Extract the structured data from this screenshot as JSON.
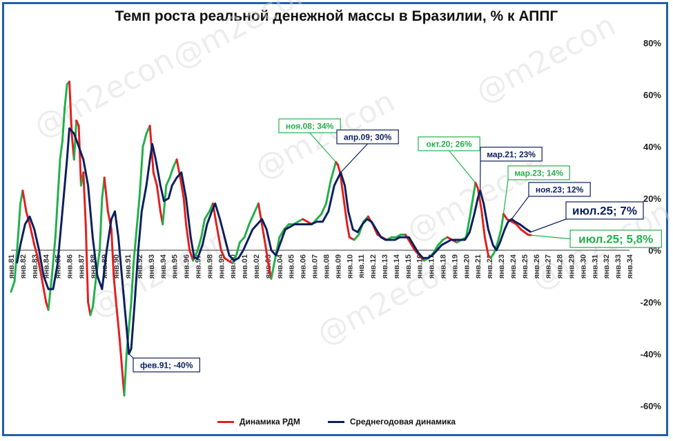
{
  "chart_data": {
    "type": "line",
    "title": "Темп роста реальной денежной массы в Бразилии, % к АППГ",
    "watermark": "@m2econ",
    "y_ticks": [
      "80%",
      "60%",
      "40%",
      "20%",
      "0%",
      "-20%",
      "-40%",
      "-60%"
    ],
    "ylim": [
      -60,
      80
    ],
    "xlim": [
      1981,
      2034
    ],
    "x_ticks": [
      "янв.81",
      "янв.82",
      "янв.83",
      "янв.84",
      "янв.85",
      "янв.86",
      "янв.87",
      "янв.88",
      "янв.89",
      "янв.90",
      "янв.91",
      "янв.92",
      "янв.93",
      "янв.94",
      "янв.95",
      "янв.96",
      "янв.97",
      "янв.98",
      "янв.99",
      "янв.00",
      "янв.01",
      "янв.02",
      "янв.03",
      "янв.04",
      "янв.05",
      "янв.06",
      "янв.07",
      "янв.08",
      "янв.09",
      "янв.10",
      "янв.11",
      "янв.12",
      "янв.13",
      "янв.14",
      "янв.15",
      "янв.16",
      "янв.17",
      "янв.18",
      "янв.19",
      "янв.20",
      "янв.21",
      "янв.22",
      "янв.23",
      "янв.24",
      "янв.25",
      "янв.26",
      "янв.27",
      "янв.28",
      "янв.29",
      "янв.30",
      "янв.31",
      "янв.32",
      "янв.33",
      "янв.34"
    ],
    "series": [
      {
        "name": "Динамика РДМ",
        "color_up": "#22b04a",
        "color_down": "#e02020",
        "points": [
          [
            1981.0,
            -16
          ],
          [
            1981.3,
            -12
          ],
          [
            1981.6,
            5
          ],
          [
            1981.8,
            18
          ],
          [
            1982.0,
            23
          ],
          [
            1982.3,
            15
          ],
          [
            1982.6,
            10
          ],
          [
            1983.0,
            2
          ],
          [
            1983.3,
            -3
          ],
          [
            1983.6,
            -10
          ],
          [
            1984.0,
            -20
          ],
          [
            1984.2,
            -23
          ],
          [
            1984.5,
            -10
          ],
          [
            1984.8,
            5
          ],
          [
            1985.0,
            20
          ],
          [
            1985.2,
            35
          ],
          [
            1985.4,
            42
          ],
          [
            1985.6,
            55
          ],
          [
            1985.8,
            64
          ],
          [
            1986.0,
            65
          ],
          [
            1986.2,
            45
          ],
          [
            1986.4,
            35
          ],
          [
            1986.6,
            50
          ],
          [
            1986.8,
            48
          ],
          [
            1987.0,
            25
          ],
          [
            1987.2,
            30
          ],
          [
            1987.4,
            10
          ],
          [
            1987.6,
            -20
          ],
          [
            1987.8,
            -25
          ],
          [
            1988.0,
            -22
          ],
          [
            1988.3,
            -10
          ],
          [
            1988.6,
            0
          ],
          [
            1988.8,
            20
          ],
          [
            1989.0,
            28
          ],
          [
            1989.3,
            15
          ],
          [
            1989.6,
            8
          ],
          [
            1989.8,
            -10
          ],
          [
            1990.0,
            -20
          ],
          [
            1990.3,
            -34
          ],
          [
            1990.5,
            -45
          ],
          [
            1990.7,
            -56
          ],
          [
            1990.9,
            -40
          ],
          [
            1991.1,
            -30
          ],
          [
            1991.3,
            -20
          ],
          [
            1991.5,
            -5
          ],
          [
            1991.8,
            10
          ],
          [
            1992.0,
            20
          ],
          [
            1992.3,
            40
          ],
          [
            1992.6,
            45
          ],
          [
            1992.9,
            48
          ],
          [
            1993.2,
            30
          ],
          [
            1993.5,
            25
          ],
          [
            1993.8,
            15
          ],
          [
            1994.0,
            10
          ],
          [
            1994.3,
            25
          ],
          [
            1994.6,
            28
          ],
          [
            1994.9,
            32
          ],
          [
            1995.2,
            35
          ],
          [
            1995.5,
            28
          ],
          [
            1995.8,
            20
          ],
          [
            1996.0,
            10
          ],
          [
            1996.3,
            0
          ],
          [
            1996.6,
            -4
          ],
          [
            1997.0,
            0
          ],
          [
            1997.3,
            5
          ],
          [
            1997.6,
            12
          ],
          [
            1998.0,
            15
          ],
          [
            1998.3,
            18
          ],
          [
            1998.6,
            10
          ],
          [
            1999.0,
            0
          ],
          [
            1999.3,
            -3
          ],
          [
            1999.6,
            -4
          ],
          [
            2000.0,
            -5
          ],
          [
            2000.3,
            -2
          ],
          [
            2000.6,
            3
          ],
          [
            2001.0,
            5
          ],
          [
            2001.4,
            10
          ],
          [
            2001.8,
            14
          ],
          [
            2002.2,
            18
          ],
          [
            2002.5,
            10
          ],
          [
            2002.8,
            2
          ],
          [
            2003.0,
            -4
          ],
          [
            2003.3,
            -11
          ],
          [
            2003.6,
            -4
          ],
          [
            2004.0,
            5
          ],
          [
            2004.4,
            8
          ],
          [
            2004.8,
            10
          ],
          [
            2005.2,
            10
          ],
          [
            2005.6,
            11
          ],
          [
            2006.0,
            12
          ],
          [
            2006.4,
            11
          ],
          [
            2006.8,
            10
          ],
          [
            2007.2,
            12
          ],
          [
            2007.6,
            14
          ],
          [
            2008.0,
            18
          ],
          [
            2008.4,
            27
          ],
          [
            2008.84,
            34
          ],
          [
            2009.0,
            33
          ],
          [
            2009.2,
            30
          ],
          [
            2009.5,
            20
          ],
          [
            2009.8,
            10
          ],
          [
            2010.0,
            5
          ],
          [
            2010.4,
            4
          ],
          [
            2010.8,
            6
          ],
          [
            2011.2,
            11
          ],
          [
            2011.6,
            13
          ],
          [
            2012.0,
            10
          ],
          [
            2012.4,
            6
          ],
          [
            2012.8,
            5
          ],
          [
            2013.2,
            4
          ],
          [
            2013.6,
            5
          ],
          [
            2014.0,
            5
          ],
          [
            2014.4,
            6
          ],
          [
            2014.8,
            6
          ],
          [
            2015.2,
            3
          ],
          [
            2015.6,
            0
          ],
          [
            2016.0,
            -2
          ],
          [
            2016.4,
            -4
          ],
          [
            2016.8,
            -3
          ],
          [
            2017.2,
            -1
          ],
          [
            2017.6,
            2
          ],
          [
            2018.0,
            4
          ],
          [
            2018.4,
            5
          ],
          [
            2018.8,
            4
          ],
          [
            2019.2,
            3
          ],
          [
            2019.6,
            4
          ],
          [
            2020.0,
            5
          ],
          [
            2020.4,
            15
          ],
          [
            2020.8,
            26
          ],
          [
            2021.0,
            24
          ],
          [
            2021.3,
            16
          ],
          [
            2021.6,
            5
          ],
          [
            2021.9,
            -2
          ],
          [
            2022.1,
            -3
          ],
          [
            2022.4,
            -1
          ],
          [
            2022.7,
            3
          ],
          [
            2023.0,
            8
          ],
          [
            2023.2,
            14
          ],
          [
            2023.5,
            12
          ],
          [
            2023.9,
            11
          ],
          [
            2024.3,
            10
          ],
          [
            2024.7,
            8
          ],
          [
            2025.0,
            7
          ],
          [
            2025.3,
            6
          ],
          [
            2025.54,
            5.8
          ]
        ]
      },
      {
        "name": "Среднегодовая динамика",
        "color": "#0b1f5c",
        "points": [
          [
            1981.5,
            -5
          ],
          [
            1981.8,
            2
          ],
          [
            1982.2,
            10
          ],
          [
            1982.6,
            13
          ],
          [
            1983.0,
            8
          ],
          [
            1983.4,
            0
          ],
          [
            1983.8,
            -10
          ],
          [
            1984.2,
            -15
          ],
          [
            1984.6,
            -15
          ],
          [
            1985.0,
            -5
          ],
          [
            1985.4,
            15
          ],
          [
            1985.8,
            35
          ],
          [
            1986.0,
            47
          ],
          [
            1986.4,
            45
          ],
          [
            1986.8,
            40
          ],
          [
            1987.2,
            35
          ],
          [
            1987.6,
            25
          ],
          [
            1988.0,
            5
          ],
          [
            1988.4,
            -10
          ],
          [
            1988.8,
            -15
          ],
          [
            1989.2,
            0
          ],
          [
            1989.6,
            12
          ],
          [
            1989.9,
            15
          ],
          [
            1990.2,
            5
          ],
          [
            1990.6,
            -15
          ],
          [
            1990.9,
            -30
          ],
          [
            1991.1,
            -40
          ],
          [
            1991.3,
            -38
          ],
          [
            1991.6,
            -20
          ],
          [
            1991.9,
            0
          ],
          [
            1992.2,
            15
          ],
          [
            1992.6,
            25
          ],
          [
            1992.9,
            35
          ],
          [
            1993.1,
            41
          ],
          [
            1993.4,
            35
          ],
          [
            1993.8,
            25
          ],
          [
            1994.1,
            19
          ],
          [
            1994.5,
            20
          ],
          [
            1994.8,
            25
          ],
          [
            1995.2,
            28
          ],
          [
            1995.6,
            30
          ],
          [
            1996.0,
            20
          ],
          [
            1996.4,
            5
          ],
          [
            1996.7,
            -3
          ],
          [
            1997.0,
            -3
          ],
          [
            1997.4,
            2
          ],
          [
            1997.8,
            10
          ],
          [
            1998.2,
            15
          ],
          [
            1998.5,
            18
          ],
          [
            1998.9,
            12
          ],
          [
            1999.3,
            5
          ],
          [
            1999.7,
            -2
          ],
          [
            2000.1,
            -4
          ],
          [
            2000.5,
            -3
          ],
          [
            2000.9,
            0
          ],
          [
            2001.3,
            4
          ],
          [
            2001.7,
            8
          ],
          [
            2002.1,
            10
          ],
          [
            2002.5,
            12
          ],
          [
            2002.9,
            8
          ],
          [
            2003.3,
            0
          ],
          [
            2003.7,
            -2
          ],
          [
            2004.1,
            3
          ],
          [
            2004.5,
            8
          ],
          [
            2004.9,
            9
          ],
          [
            2005.3,
            10
          ],
          [
            2005.7,
            10
          ],
          [
            2006.2,
            10
          ],
          [
            2006.7,
            10
          ],
          [
            2007.2,
            11
          ],
          [
            2007.7,
            11
          ],
          [
            2008.2,
            15
          ],
          [
            2008.7,
            25
          ],
          [
            2009.25,
            30
          ],
          [
            2009.6,
            25
          ],
          [
            2009.9,
            15
          ],
          [
            2010.3,
            8
          ],
          [
            2010.7,
            7
          ],
          [
            2011.1,
            10
          ],
          [
            2011.5,
            12
          ],
          [
            2011.9,
            11
          ],
          [
            2012.3,
            8
          ],
          [
            2012.7,
            5
          ],
          [
            2013.1,
            4
          ],
          [
            2013.5,
            4
          ],
          [
            2013.9,
            4
          ],
          [
            2014.3,
            5
          ],
          [
            2014.7,
            5
          ],
          [
            2015.1,
            5
          ],
          [
            2015.5,
            2
          ],
          [
            2015.9,
            -1
          ],
          [
            2016.3,
            -3
          ],
          [
            2016.7,
            -3
          ],
          [
            2017.1,
            -2
          ],
          [
            2017.5,
            0
          ],
          [
            2017.9,
            2
          ],
          [
            2018.3,
            3
          ],
          [
            2018.7,
            4
          ],
          [
            2019.1,
            4
          ],
          [
            2019.5,
            4
          ],
          [
            2019.9,
            4
          ],
          [
            2020.3,
            7
          ],
          [
            2020.7,
            14
          ],
          [
            2021.0,
            20
          ],
          [
            2021.2,
            23
          ],
          [
            2021.5,
            18
          ],
          [
            2021.9,
            8
          ],
          [
            2022.3,
            2
          ],
          [
            2022.6,
            0
          ],
          [
            2022.9,
            3
          ],
          [
            2023.3,
            8
          ],
          [
            2023.6,
            11
          ],
          [
            2023.9,
            12
          ],
          [
            2024.2,
            11
          ],
          [
            2024.6,
            10
          ],
          [
            2024.9,
            9
          ],
          [
            2025.2,
            8
          ],
          [
            2025.54,
            7
          ]
        ]
      }
    ],
    "annotations": [
      {
        "text": "ноя.08; 34%",
        "x": 2008.84,
        "y": 34,
        "style": "green"
      },
      {
        "text": "апр.09; 30%",
        "x": 2009.25,
        "y": 30,
        "style": "navy"
      },
      {
        "text": "окт.20; 26%",
        "x": 2020.8,
        "y": 26,
        "style": "green"
      },
      {
        "text": "мар.21; 23%",
        "x": 2021.2,
        "y": 23,
        "style": "navy"
      },
      {
        "text": "мар.23; 14%",
        "x": 2023.2,
        "y": 14,
        "style": "green"
      },
      {
        "text": "ноя.23; 12%",
        "x": 2023.9,
        "y": 12,
        "style": "navy"
      },
      {
        "text": "июл.25; 7%",
        "x": 2025.54,
        "y": 7,
        "style": "navy-big"
      },
      {
        "text": "июл.25; 5,8%",
        "x": 2025.54,
        "y": 5.8,
        "style": "green-big"
      },
      {
        "text": "фев.91; -40%",
        "x": 1991.1,
        "y": -40,
        "style": "navy"
      }
    ]
  },
  "legend": {
    "rdm_label": "Динамика РДМ",
    "avg_label": "Среднегодовая динамика",
    "rdm_color": "#e02020",
    "avg_color": "#0b1f5c"
  }
}
